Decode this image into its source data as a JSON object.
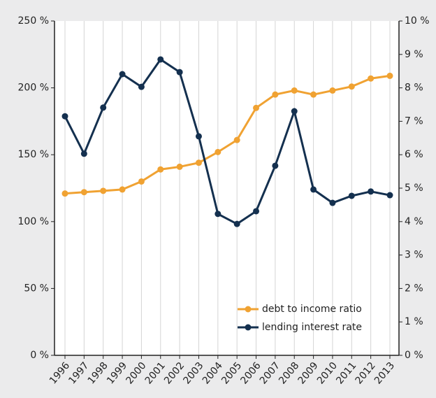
{
  "chart_data": {
    "type": "line",
    "categories": [
      "1996",
      "1997",
      "1998",
      "1999",
      "2000",
      "2001",
      "2002",
      "2003",
      "2004",
      "2005",
      "2006",
      "2007",
      "2008",
      "2009",
      "2010",
      "2011",
      "2012",
      "2013"
    ],
    "series": [
      {
        "name": "debt to income ratio",
        "color": "#f0a232",
        "values": [
          121,
          122,
          123,
          124,
          130,
          139,
          141,
          144,
          152,
          161,
          185,
          195,
          198,
          195,
          198,
          201,
          207,
          209
        ]
      },
      {
        "name": "lending interest rate",
        "color": "#14304f",
        "axis": "y2",
        "values": [
          7.15,
          6.03,
          7.41,
          8.41,
          8.03,
          8.85,
          8.47,
          6.55,
          4.23,
          3.93,
          4.31,
          5.67,
          7.3,
          4.96,
          4.56,
          4.77,
          4.9,
          4.79
        ]
      }
    ],
    "ylim": [
      0,
      250
    ],
    "yticks": [
      {
        "value": 0,
        "label": "0 %"
      },
      {
        "value": 50,
        "label": "50 %"
      },
      {
        "value": 100,
        "label": "100 %"
      },
      {
        "value": 150,
        "label": "150 %"
      },
      {
        "value": 200,
        "label": "200 %"
      },
      {
        "value": 250,
        "label": "250 %"
      }
    ],
    "y2lim": [
      0,
      10
    ],
    "y2ticks": [
      {
        "value": 0,
        "label": "0 %"
      },
      {
        "value": 1,
        "label": "1 %"
      },
      {
        "value": 2,
        "label": "2 %"
      },
      {
        "value": 3,
        "label": "3 %"
      },
      {
        "value": 4,
        "label": "4 %"
      },
      {
        "value": 5,
        "label": "5 %"
      },
      {
        "value": 6,
        "label": "6 %"
      },
      {
        "value": 7,
        "label": "7 %"
      },
      {
        "value": 8,
        "label": "8 %"
      },
      {
        "value": 9,
        "label": "9 %"
      },
      {
        "value": 10,
        "label": "10 %"
      }
    ],
    "grid": true,
    "legend": "lower right"
  }
}
